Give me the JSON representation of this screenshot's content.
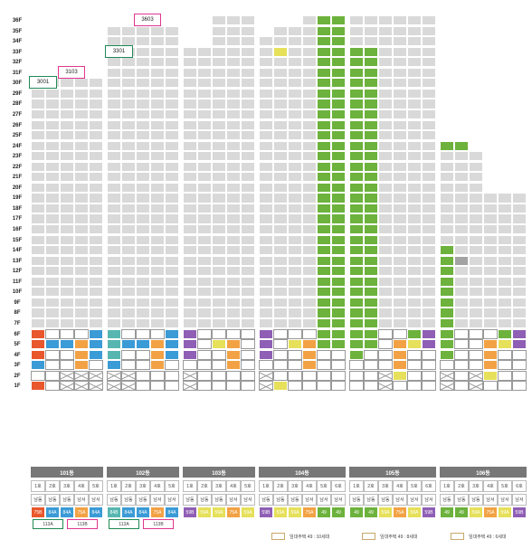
{
  "floors": [
    "36F",
    "35F",
    "34F",
    "33F",
    "32F",
    "31F",
    "30F",
    "29F",
    "28F",
    "27F",
    "26F",
    "25F",
    "24F",
    "23F",
    "22F",
    "21F",
    "20F",
    "19F",
    "18F",
    "17F",
    "16F",
    "15F",
    "14F",
    "13F",
    "12F",
    "11F",
    "10F",
    "9F",
    "8F",
    "7F",
    "6F",
    "5F",
    "4F",
    "3F",
    "2F",
    "1F"
  ],
  "callouts": [
    "3603",
    "3301",
    "3103",
    "3001"
  ],
  "buildings": [
    {
      "name": "101동",
      "lines": [
        "1호",
        "2호",
        "3호",
        "4호",
        "5호"
      ],
      "dirs": [
        "남동",
        "남동",
        "남동",
        "남서",
        "남서"
      ],
      "types": [
        "75B",
        "84A",
        "84A",
        "75A",
        "84A"
      ],
      "type_colors": [
        "#e9572c",
        "#3b9bd6",
        "#3b9bd6",
        "#f2a244",
        "#3b9bd6"
      ],
      "footers": [
        "113A",
        "113B"
      ]
    },
    {
      "name": "102동",
      "lines": [
        "1호",
        "2호",
        "3호",
        "4호",
        "5호"
      ],
      "dirs": [
        "남동",
        "남동",
        "남동",
        "남서",
        "남서"
      ],
      "types": [
        "84B",
        "84A",
        "84A",
        "75A",
        "84A"
      ],
      "type_colors": [
        "#57b7b0",
        "#3b9bd6",
        "#3b9bd6",
        "#f2a244",
        "#3b9bd6"
      ],
      "footers": [
        "113A",
        "113B"
      ]
    },
    {
      "name": "103동",
      "lines": [
        "1호",
        "2호",
        "3호",
        "4호",
        "5호"
      ],
      "dirs": [
        "남동",
        "남동",
        "남동",
        "남서",
        "남서"
      ],
      "types": [
        "59B",
        "59A",
        "59A",
        "75A",
        "59A"
      ],
      "type_colors": [
        "#8f5fb5",
        "#e6e05a",
        "#e6e05a",
        "#f2a244",
        "#e6e05a"
      ],
      "footers": []
    },
    {
      "name": "104동",
      "lines": [
        "1호",
        "2호",
        "3호",
        "4호",
        "5호",
        "6호"
      ],
      "dirs": [
        "남동",
        "남동",
        "남동",
        "남서",
        "남서",
        "남서"
      ],
      "types": [
        "59B",
        "59A",
        "59A",
        "75A",
        "49",
        "49"
      ],
      "type_colors": [
        "#8f5fb5",
        "#e6e05a",
        "#e6e05a",
        "#f2a244",
        "#6cb23c",
        "#6cb23c"
      ],
      "footers": []
    },
    {
      "name": "105동",
      "lines": [
        "1호",
        "2호",
        "3호",
        "4호",
        "5호",
        "6호"
      ],
      "dirs": [
        "남동",
        "남동",
        "남동",
        "남서",
        "남서",
        "남서"
      ],
      "types": [
        "49",
        "49",
        "59A",
        "75A",
        "59A",
        "59B"
      ],
      "type_colors": [
        "#6cb23c",
        "#6cb23c",
        "#e6e05a",
        "#f2a244",
        "#e6e05a",
        "#8f5fb5"
      ],
      "footers": []
    },
    {
      "name": "106동",
      "lines": [
        "1호",
        "2호",
        "3호",
        "4호",
        "5호",
        "6호"
      ],
      "dirs": [
        "남동",
        "남동",
        "남동",
        "남서",
        "남서",
        "남서"
      ],
      "types": [
        "49",
        "49",
        "59A",
        "75A",
        "59A",
        "59B"
      ],
      "type_colors": [
        "#6cb23c",
        "#6cb23c",
        "#e6e05a",
        "#f2a244",
        "#e6e05a",
        "#8f5fb5"
      ],
      "footers": []
    }
  ],
  "legend": [
    "임대주택 49 : 10세대",
    "임대주택 49 : 8세대",
    "임대주택 49 : 6세대"
  ],
  "colors": {
    "green": "#6cb23c",
    "gray": "#d9d9d9",
    "yellow": "#e6e05a",
    "orange": "#f2a244",
    "red": "#e9572c",
    "blue": "#3b9bd6",
    "purple": "#8f5fb5",
    "teal": "#57b7b0",
    "callout_pink": "#e0368f",
    "callout_green": "#1f8a55",
    "header": "#777777"
  }
}
